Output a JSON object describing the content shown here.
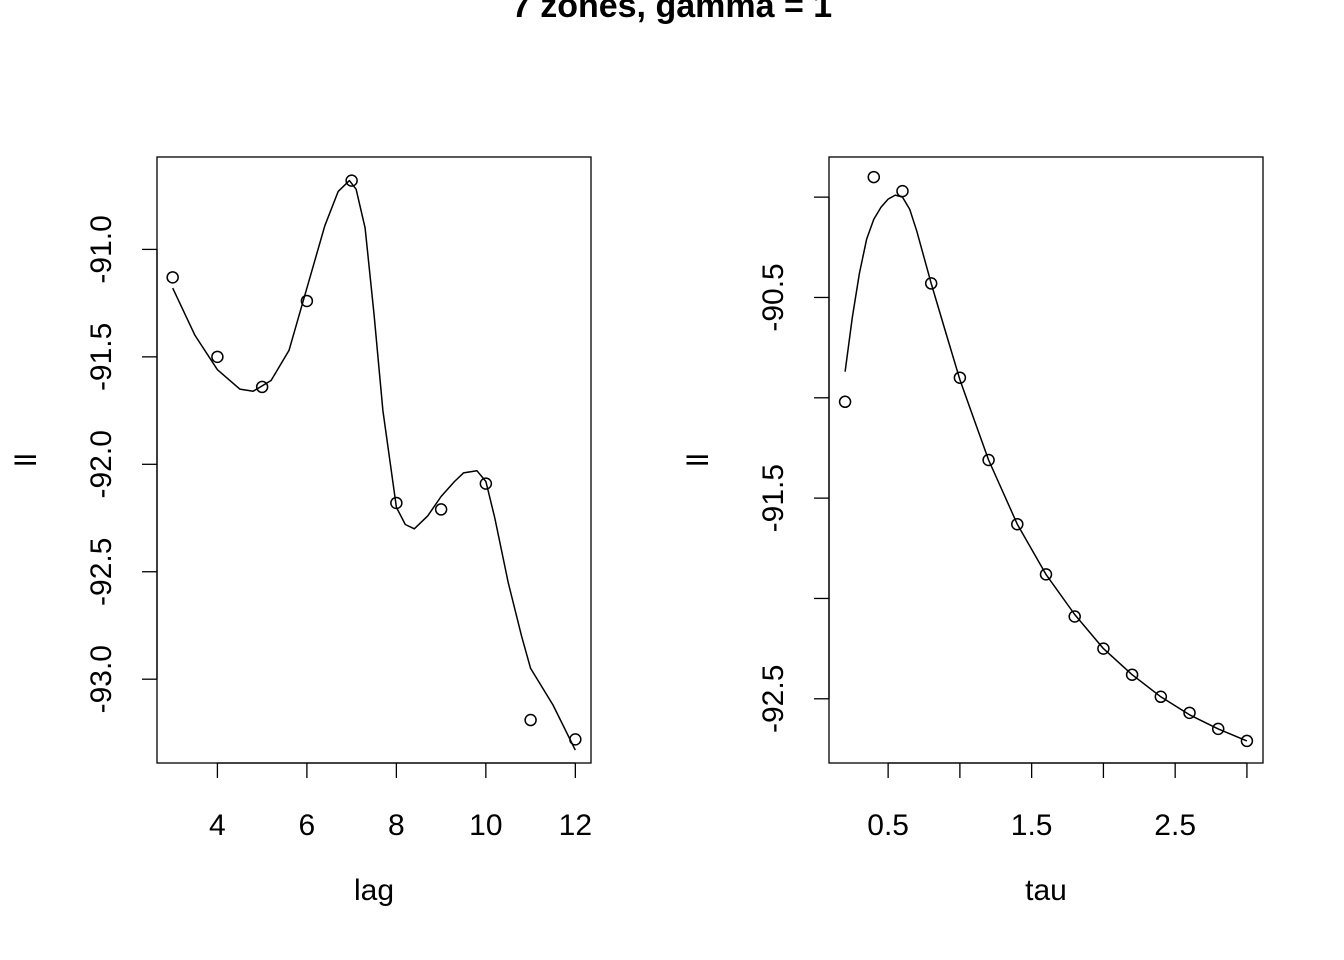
{
  "title": "7 zones, gamma = 1",
  "chart_data": [
    {
      "type": "scatter",
      "title": "",
      "xlabel": "lag",
      "ylabel": "ll",
      "xlim": [
        2.65,
        12.35
      ],
      "ylim": [
        -93.39,
        -90.57
      ],
      "x_ticks": [
        4,
        6,
        8,
        10,
        12
      ],
      "x_tick_labels": [
        "4",
        "6",
        "8",
        "10",
        "12"
      ],
      "y_ticks": [
        -91.0,
        -91.5,
        -92.0,
        -92.5,
        -93.0
      ],
      "y_tick_labels": [
        "-91.0",
        "-91.5",
        "-92.0",
        "-92.5",
        "-93.0"
      ],
      "grid": false,
      "points": {
        "x": [
          3,
          4,
          5,
          6,
          7,
          8,
          9,
          10,
          11,
          12
        ],
        "y": [
          -91.13,
          -91.5,
          -91.64,
          -91.24,
          -90.68,
          -92.18,
          -92.21,
          -92.09,
          -93.19,
          -93.28
        ]
      },
      "smooth_curve": {
        "x": [
          3.0,
          3.5,
          4.0,
          4.5,
          4.8,
          5.2,
          5.6,
          6.0,
          6.4,
          6.7,
          6.95,
          7.1,
          7.3,
          7.5,
          7.7,
          8.0,
          8.2,
          8.4,
          8.7,
          9.0,
          9.3,
          9.5,
          9.8,
          10.0,
          10.2,
          10.5,
          10.8,
          11.0,
          11.5,
          12.0
        ],
        "y": [
          -91.18,
          -91.4,
          -91.56,
          -91.65,
          -91.66,
          -91.61,
          -91.47,
          -91.18,
          -90.89,
          -90.73,
          -90.68,
          -90.72,
          -90.9,
          -91.3,
          -91.75,
          -92.2,
          -92.28,
          -92.3,
          -92.24,
          -92.15,
          -92.08,
          -92.04,
          -92.03,
          -92.08,
          -92.25,
          -92.55,
          -92.8,
          -92.95,
          -93.12,
          -93.33
        ]
      }
    },
    {
      "type": "scatter",
      "title": "",
      "xlabel": "tau",
      "ylabel": "ll",
      "xlim": [
        0.088,
        3.112
      ],
      "ylim": [
        -92.82,
        -89.8
      ],
      "x_ticks": [
        0.5,
        1.0,
        1.5,
        2.0,
        2.5,
        3.0
      ],
      "x_tick_labels": [
        "0.5",
        "",
        "1.5",
        "",
        "2.5",
        ""
      ],
      "y_ticks": [
        -90.0,
        -90.5,
        -91.0,
        -91.5,
        -92.0,
        -92.5
      ],
      "y_tick_labels": [
        "",
        "-90.5",
        "",
        "-91.5",
        "",
        "-92.5"
      ],
      "grid": false,
      "points": {
        "x": [
          0.2,
          0.4,
          0.6,
          0.8,
          1.0,
          1.2,
          1.4,
          1.6,
          1.8,
          2.0,
          2.2,
          2.4,
          2.6,
          2.8,
          3.0
        ],
        "y": [
          -91.02,
          -89.9,
          -89.97,
          -90.43,
          -90.9,
          -91.31,
          -91.63,
          -91.88,
          -92.09,
          -92.25,
          -92.38,
          -92.49,
          -92.57,
          -92.65,
          -92.71
        ]
      },
      "smooth_curve": {
        "x": [
          0.2,
          0.25,
          0.3,
          0.35,
          0.4,
          0.45,
          0.5,
          0.55,
          0.6,
          0.65,
          0.7,
          0.8,
          0.9,
          1.0,
          1.1,
          1.2,
          1.4,
          1.6,
          1.8,
          2.0,
          2.2,
          2.4,
          2.6,
          2.8,
          3.0
        ],
        "y": [
          -90.87,
          -90.6,
          -90.38,
          -90.21,
          -90.11,
          -90.05,
          -90.01,
          -89.99,
          -90.0,
          -90.06,
          -90.17,
          -90.43,
          -90.67,
          -90.91,
          -91.11,
          -91.31,
          -91.63,
          -91.88,
          -92.08,
          -92.25,
          -92.38,
          -92.49,
          -92.58,
          -92.65,
          -92.71
        ]
      }
    }
  ]
}
